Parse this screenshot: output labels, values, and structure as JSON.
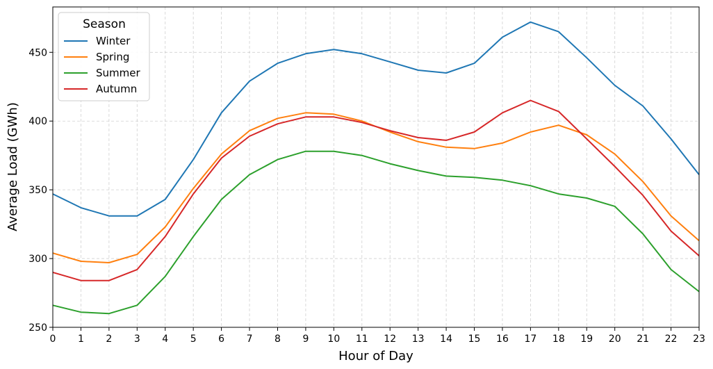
{
  "chart_data": {
    "type": "line",
    "title": "",
    "xlabel": "Hour of Day",
    "ylabel": "Average Load (GWh)",
    "x": [
      0,
      1,
      2,
      3,
      4,
      5,
      6,
      7,
      8,
      9,
      10,
      11,
      12,
      13,
      14,
      15,
      16,
      17,
      18,
      19,
      20,
      21,
      22,
      23
    ],
    "xlim": [
      0,
      23
    ],
    "ylim": [
      250,
      483
    ],
    "yticks": [
      250,
      300,
      350,
      400,
      450
    ],
    "grid": true,
    "legend": {
      "title": "Season",
      "placement": "top-left"
    },
    "series": [
      {
        "name": "Winter",
        "color": "#1f77b4",
        "values": [
          347,
          337,
          331,
          331,
          343,
          372,
          406,
          429,
          442,
          449,
          452,
          449,
          443,
          437,
          435,
          442,
          461,
          472,
          465,
          446,
          426,
          411,
          387,
          361
        ]
      },
      {
        "name": "Spring",
        "color": "#ff7f0e",
        "values": [
          304,
          298,
          297,
          303,
          323,
          351,
          376,
          393,
          402,
          406,
          405,
          400,
          392,
          385,
          381,
          380,
          384,
          392,
          397,
          390,
          376,
          356,
          331,
          313
        ]
      },
      {
        "name": "Summer",
        "color": "#2ca02c",
        "values": [
          266,
          261,
          260,
          266,
          287,
          316,
          343,
          361,
          372,
          378,
          378,
          375,
          369,
          364,
          360,
          359,
          357,
          353,
          347,
          344,
          338,
          318,
          292,
          276
        ]
      },
      {
        "name": "Autumn",
        "color": "#d62728",
        "values": [
          290,
          284,
          284,
          292,
          316,
          347,
          373,
          389,
          398,
          403,
          403,
          399,
          393,
          388,
          386,
          392,
          406,
          415,
          407,
          387,
          367,
          346,
          320,
          302
        ]
      }
    ]
  }
}
